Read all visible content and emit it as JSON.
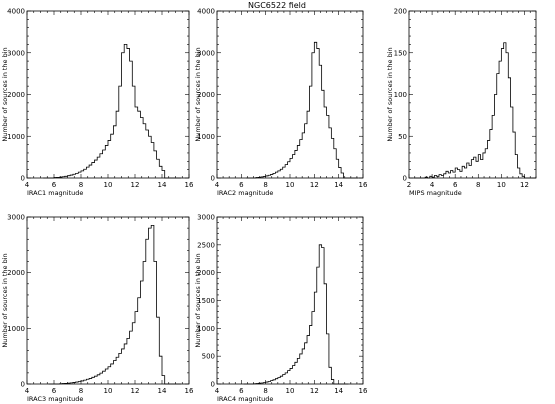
{
  "figure_title": "NGC6522  field",
  "chart_data": [
    {
      "type": "histogram",
      "xlabel": "IRAC1 magnitude",
      "ylabel": "Number of sources in the bin",
      "xlim": [
        4,
        16
      ],
      "ylim": [
        0,
        4000
      ],
      "xticks": [
        4,
        6,
        8,
        10,
        12,
        14,
        16
      ],
      "yticks": [
        0,
        1000,
        2000,
        3000,
        4000
      ],
      "bin_width": 0.2,
      "bin_start": 6.0,
      "counts": [
        10,
        15,
        20,
        30,
        40,
        55,
        70,
        90,
        110,
        140,
        170,
        210,
        260,
        310,
        370,
        430,
        500,
        580,
        670,
        780,
        900,
        1050,
        1250,
        1600,
        2200,
        3000,
        3200,
        3100,
        2800,
        2200,
        1700,
        1600,
        1450,
        1300,
        1150,
        1000,
        850,
        650,
        450,
        280,
        180
      ]
    },
    {
      "type": "histogram",
      "xlabel": "IRAC2 magnitude",
      "ylabel": "Number of sources in the bin",
      "xlim": [
        4,
        16
      ],
      "ylim": [
        0,
        4000
      ],
      "xticks": [
        4,
        6,
        8,
        10,
        12,
        14,
        16
      ],
      "yticks": [
        0,
        1000,
        2000,
        3000,
        4000
      ],
      "bin_width": 0.2,
      "bin_start": 7.2,
      "counts": [
        10,
        15,
        25,
        35,
        50,
        65,
        85,
        110,
        140,
        170,
        210,
        260,
        320,
        390,
        470,
        560,
        660,
        780,
        920,
        1080,
        1300,
        1600,
        2200,
        3000,
        3250,
        3100,
        2700,
        2100,
        1700,
        1500,
        1200,
        950,
        700,
        450,
        250,
        120
      ]
    },
    {
      "type": "histogram",
      "xlabel": "MIPS magnitude",
      "ylabel": "Number of sources in the bin",
      "xlim": [
        2,
        13
      ],
      "ylim": [
        0,
        200
      ],
      "xticks": [
        2,
        4,
        6,
        8,
        10,
        12
      ],
      "yticks": [
        0,
        50,
        100,
        150,
        200
      ],
      "bin_width": 0.2,
      "bin_start": 3.2,
      "counts": [
        0,
        1,
        0,
        2,
        1,
        3,
        2,
        4,
        3,
        5,
        8,
        6,
        9,
        7,
        12,
        10,
        8,
        14,
        12,
        18,
        15,
        22,
        25,
        20,
        28,
        22,
        30,
        35,
        45,
        58,
        75,
        100,
        125,
        140,
        155,
        162,
        150,
        120,
        85,
        55,
        28,
        12,
        5,
        2
      ]
    },
    {
      "type": "histogram",
      "xlabel": "IRAC3 magnitude",
      "ylabel": "Number of sources in the bin",
      "xlim": [
        4,
        16
      ],
      "ylim": [
        0,
        3000
      ],
      "xticks": [
        4,
        6,
        8,
        10,
        12,
        14,
        16
      ],
      "yticks": [
        0,
        1000,
        2000,
        3000
      ],
      "bin_width": 0.2,
      "bin_start": 6.4,
      "counts": [
        5,
        8,
        10,
        15,
        20,
        28,
        35,
        45,
        55,
        70,
        85,
        100,
        120,
        140,
        165,
        195,
        230,
        270,
        310,
        360,
        420,
        480,
        550,
        630,
        720,
        820,
        950,
        1100,
        1300,
        1550,
        1850,
        2200,
        2600,
        2800,
        2850,
        2200,
        1200,
        500,
        150
      ]
    },
    {
      "type": "histogram",
      "xlabel": "IRAC4 magnitude",
      "ylabel": "Number of sources in the bin",
      "xlim": [
        4,
        16
      ],
      "ylim": [
        0,
        3000
      ],
      "xticks": [
        4,
        6,
        8,
        10,
        12,
        14,
        16
      ],
      "yticks": [
        0,
        500,
        1000,
        1500,
        2000,
        2500,
        3000
      ],
      "bin_width": 0.2,
      "bin_start": 7.0,
      "counts": [
        5,
        8,
        12,
        18,
        25,
        35,
        45,
        60,
        75,
        95,
        115,
        140,
        170,
        200,
        240,
        280,
        330,
        390,
        460,
        540,
        630,
        740,
        870,
        1050,
        1300,
        1650,
        2100,
        2500,
        2450,
        1800,
        900,
        300,
        80
      ]
    }
  ]
}
